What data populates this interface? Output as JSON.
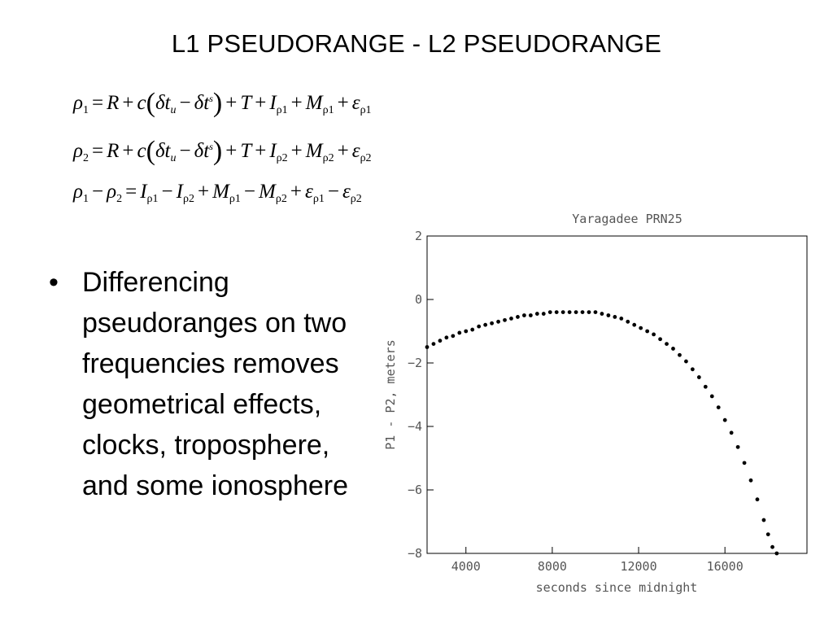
{
  "slide": {
    "title": "L1 PSEUDORANGE - L2 PSEUDORANGE",
    "bullet_marker": "•",
    "bullet": "Differencing pseudoranges on two frequencies removes geometrical effects, clocks, troposphere, and some ionosphere"
  },
  "equations": {
    "eq1": {
      "lhs": "ρ",
      "lhs_sub": "1",
      "I_sub": "ρ1",
      "M_sub": "ρ1",
      "e_sub": "ρ1"
    },
    "eq2": {
      "lhs": "ρ",
      "lhs_sub": "2",
      "I_sub": "ρ2",
      "M_sub": "ρ2",
      "e_sub": "ρ2"
    },
    "eq3": "ρ1 − ρ2 = Iρ1 − Iρ2 + Mρ1 − Mρ2 + ερ1 − ερ2"
  },
  "chart_data": {
    "type": "scatter",
    "title": "Yaragadee PRN25",
    "xlabel": "seconds since midnight",
    "ylabel": "P1 - P2, meters",
    "xlim": [
      2200,
      19800
    ],
    "ylim": [
      -8,
      2
    ],
    "xticks": [
      4000,
      8000,
      12000,
      16000
    ],
    "yticks": [
      2,
      0,
      -2,
      -4,
      -6,
      -8
    ],
    "ytick_labels": [
      "2",
      "0",
      "−2",
      "−4",
      "−6",
      "−8"
    ],
    "grid": false,
    "marker_color": "#000000",
    "series": [
      {
        "x": [
          2200,
          2500,
          2800,
          3100,
          3400,
          3700,
          4000,
          4300,
          4600,
          4900,
          5200,
          5500,
          5800,
          6100,
          6400,
          6700,
          7000,
          7300,
          7600,
          7900,
          8200,
          8500,
          8800,
          9100,
          9400,
          9700,
          10000,
          10300,
          10600,
          10900,
          11200,
          11500,
          11800,
          12100,
          12400,
          12700,
          13000,
          13300,
          13600,
          13900,
          14200,
          14500,
          14800,
          15100,
          15400,
          15700,
          16000,
          16300,
          16600,
          16900,
          17200,
          17500,
          17800,
          18000,
          18200,
          18400
        ],
        "y": [
          -1.5,
          -1.4,
          -1.3,
          -1.2,
          -1.15,
          -1.05,
          -1.0,
          -0.95,
          -0.85,
          -0.8,
          -0.75,
          -0.7,
          -0.65,
          -0.6,
          -0.55,
          -0.5,
          -0.5,
          -0.45,
          -0.45,
          -0.4,
          -0.4,
          -0.4,
          -0.4,
          -0.4,
          -0.4,
          -0.4,
          -0.4,
          -0.45,
          -0.5,
          -0.55,
          -0.6,
          -0.7,
          -0.8,
          -0.9,
          -1.0,
          -1.1,
          -1.25,
          -1.4,
          -1.55,
          -1.75,
          -1.95,
          -2.2,
          -2.45,
          -2.75,
          -3.05,
          -3.4,
          -3.8,
          -4.2,
          -4.65,
          -5.15,
          -5.7,
          -6.3,
          -6.95,
          -7.4,
          -7.8,
          -8.0
        ]
      }
    ]
  }
}
